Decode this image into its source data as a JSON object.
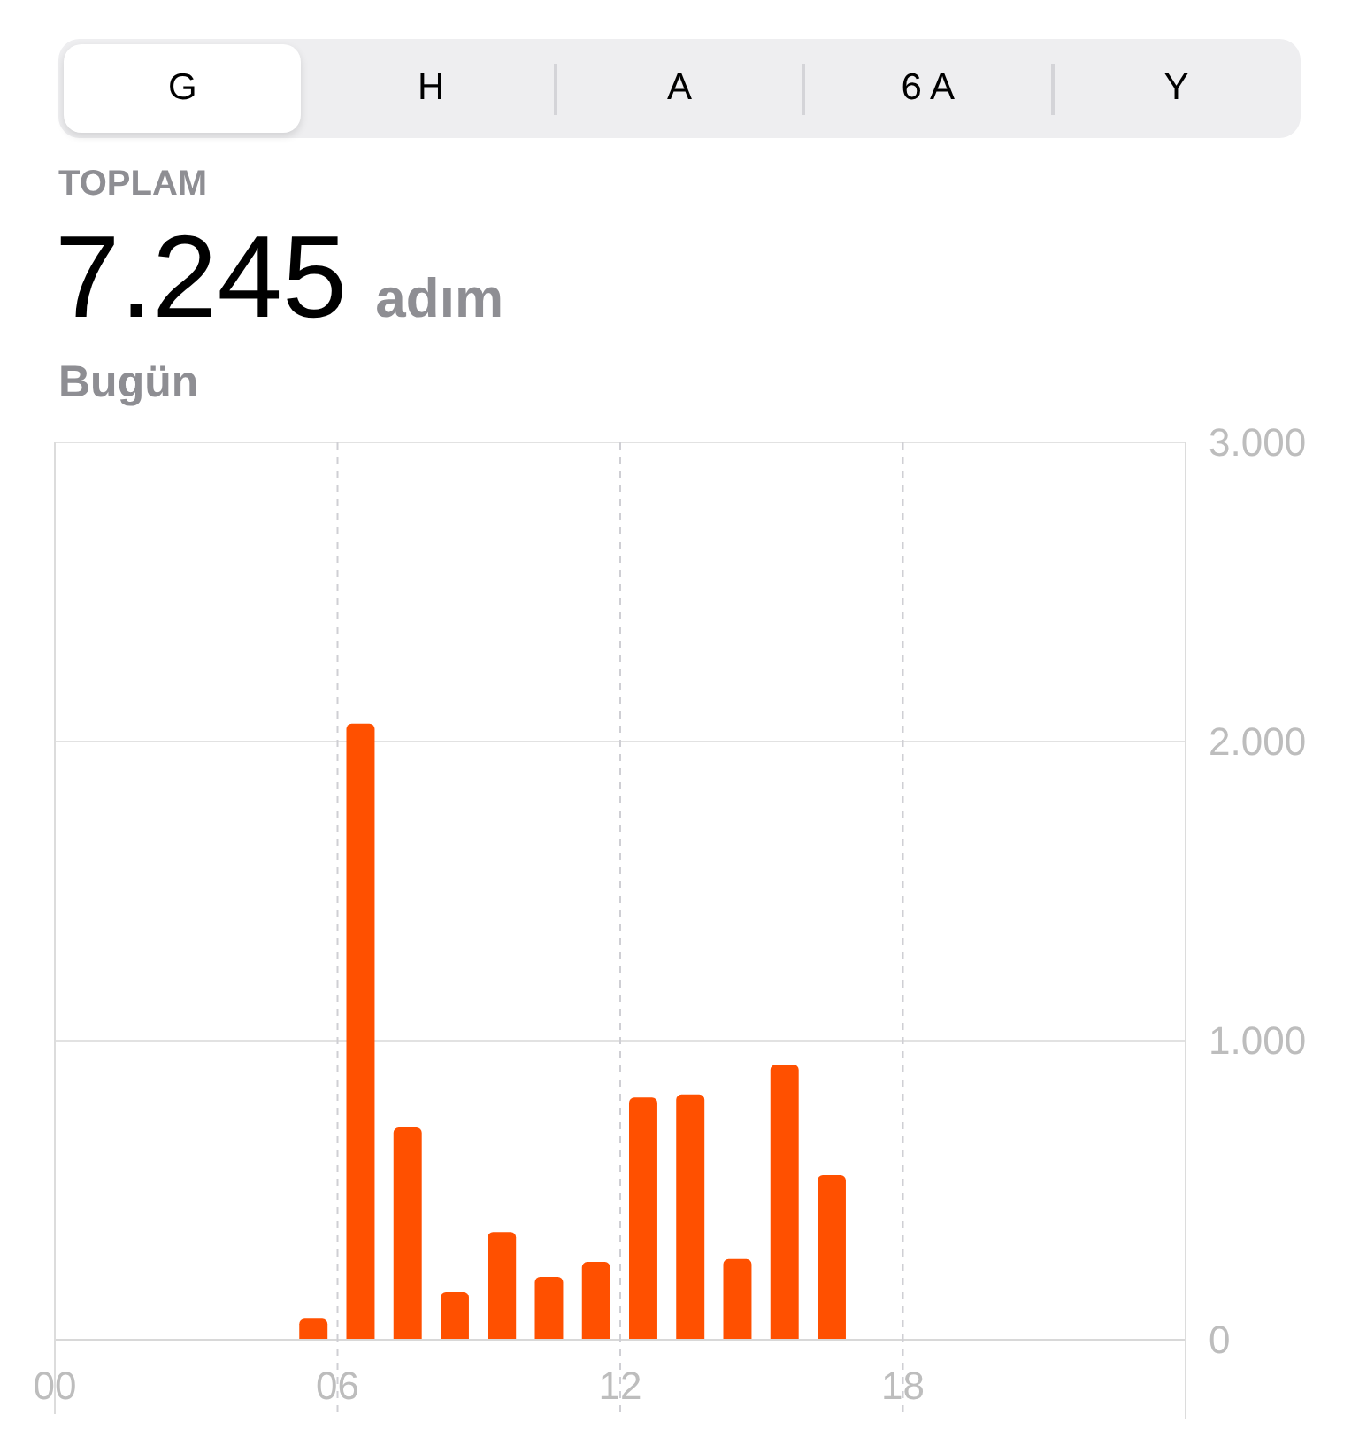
{
  "chart_data": {
    "type": "bar",
    "title": "TOPLAM",
    "subtitle": "7.245 adım",
    "annotations": [
      "G",
      "H",
      "A",
      "6 A",
      "Y",
      "Bugün"
    ],
    "x": [
      5.5,
      6.5,
      7.5,
      8.5,
      9.5,
      10.5,
      11.5,
      12.5,
      13.5,
      14.5,
      15.5,
      16.5
    ],
    "values": [
      70,
      2060,
      710,
      160,
      360,
      210,
      260,
      810,
      820,
      270,
      920,
      550
    ],
    "color": "#ff5000",
    "xlim": [
      0,
      24
    ],
    "xticks": [
      {
        "value": 0,
        "label": "00"
      },
      {
        "value": 6,
        "label": "06"
      },
      {
        "value": 12,
        "label": "12"
      },
      {
        "value": 18,
        "label": "18"
      }
    ],
    "ylim": [
      0,
      3000
    ],
    "yticks": [
      0,
      {
        "value": 1000,
        "label": "1.000"
      },
      {
        "value": 2000,
        "label": "2.000"
      },
      {
        "value": 3000,
        "label": "3.000"
      }
    ],
    "grid": true
  }
}
